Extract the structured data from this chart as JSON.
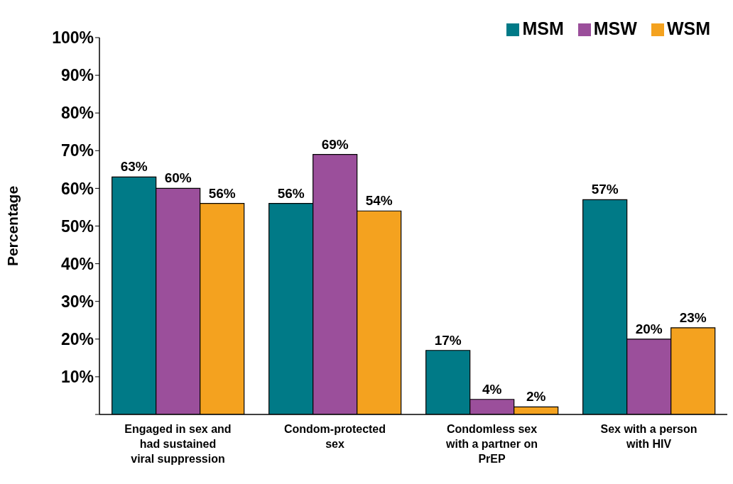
{
  "chart_data": {
    "type": "bar",
    "ylabel": "Percentage",
    "categories": [
      "Engaged in sex and had sustained viral suppression",
      "Condom-protected sex",
      "Condomless sex with a partner on PrEP",
      "Sex with a person with HIV"
    ],
    "series": [
      {
        "name": "MSM",
        "color": "#007a87",
        "values": [
          63,
          56,
          17,
          57
        ],
        "value_labels": [
          "63%",
          "56%",
          "17%",
          "57%"
        ]
      },
      {
        "name": "MSW",
        "color": "#9b4f9b",
        "values": [
          60,
          69,
          4,
          20
        ],
        "value_labels": [
          "60%",
          "69%",
          "4%",
          "20%"
        ]
      },
      {
        "name": "WSM",
        "color": "#f4a21f",
        "values": [
          56,
          54,
          2,
          23
        ],
        "value_labels": [
          "56%",
          "54%",
          "2%",
          "23%"
        ]
      }
    ],
    "ylim": [
      0,
      100
    ],
    "yticks": [
      {
        "value": 0,
        "label": null
      },
      {
        "value": 10,
        "label": "10%"
      },
      {
        "value": 20,
        "label": "20%"
      },
      {
        "value": 30,
        "label": "30%"
      },
      {
        "value": 40,
        "label": "40%"
      },
      {
        "value": 50,
        "label": "50%"
      },
      {
        "value": 60,
        "label": "60%"
      },
      {
        "value": 70,
        "label": "70%"
      },
      {
        "value": 80,
        "label": "80%"
      },
      {
        "value": 90,
        "label": "90%"
      },
      {
        "value": 100,
        "label": "100%"
      }
    ],
    "grid": false,
    "legend": "top right"
  }
}
